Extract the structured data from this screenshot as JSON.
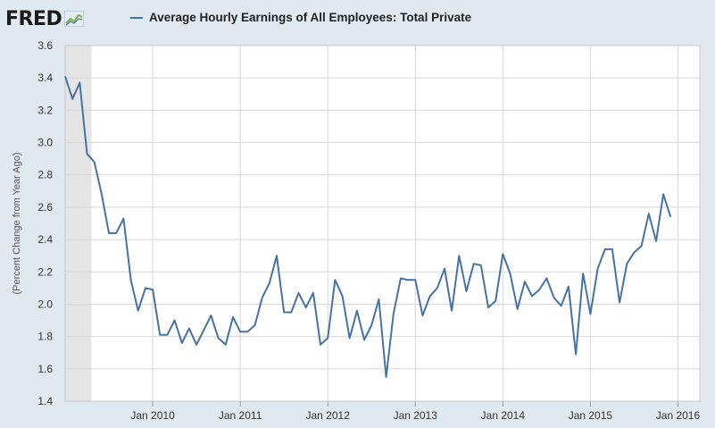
{
  "header": {
    "logo_text": "FRED",
    "logo_icon": "trend-graph-icon"
  },
  "chart_data": {
    "type": "line",
    "title": "Average Hourly Earnings of All Employees: Total Private",
    "xlabel": "",
    "ylabel": "(Percent Change from Year Ago)",
    "ylim": [
      1.4,
      3.6
    ],
    "yticks": [
      "1.4",
      "1.6",
      "1.8",
      "2.0",
      "2.2",
      "2.4",
      "2.6",
      "2.8",
      "3.0",
      "3.2",
      "3.4",
      "3.6"
    ],
    "xticks": [
      {
        "label": "Jan 2010",
        "x": 2010.0
      },
      {
        "label": "Jan 2011",
        "x": 2011.0
      },
      {
        "label": "Jan 2012",
        "x": 2012.0
      },
      {
        "label": "Jan 2013",
        "x": 2013.0
      },
      {
        "label": "Jan 2014",
        "x": 2014.0
      },
      {
        "label": "Jan 2015",
        "x": 2015.0
      },
      {
        "label": "Jan 2016",
        "x": 2016.0
      }
    ],
    "xlim": [
      2009.0,
      2016.25
    ],
    "recession": {
      "start": 2009.0,
      "end": 2009.3
    },
    "grid": true,
    "colors": {
      "line": "#4572a7",
      "recession": "#e5e5e5",
      "background": "#e1e9f0",
      "plot": "#ffffff",
      "grid": "#d8d8d8"
    },
    "series": [
      {
        "name": "Average Hourly Earnings of All Employees: Total Private",
        "start": 2009.0,
        "step_months": 1,
        "values": [
          3.41,
          3.27,
          3.37,
          2.93,
          2.88,
          2.68,
          2.44,
          2.44,
          2.53,
          2.15,
          1.96,
          2.1,
          2.09,
          1.81,
          1.81,
          1.9,
          1.76,
          1.85,
          1.75,
          1.84,
          1.93,
          1.79,
          1.75,
          1.92,
          1.83,
          1.83,
          1.87,
          2.04,
          2.13,
          2.3,
          1.95,
          1.95,
          2.07,
          1.98,
          2.07,
          1.75,
          1.79,
          2.15,
          2.05,
          1.79,
          1.96,
          1.78,
          1.87,
          2.03,
          1.55,
          1.94,
          2.16,
          2.15,
          2.15,
          1.93,
          2.05,
          2.1,
          2.22,
          1.96,
          2.3,
          2.08,
          2.25,
          2.24,
          1.98,
          2.02,
          2.31,
          2.19,
          1.97,
          2.14,
          2.05,
          2.09,
          2.16,
          2.04,
          1.99,
          2.11,
          1.69,
          2.19,
          1.94,
          2.22,
          2.34,
          2.34,
          2.01,
          2.25,
          2.32,
          2.36,
          2.56,
          2.39,
          2.68,
          2.54
        ]
      }
    ]
  }
}
